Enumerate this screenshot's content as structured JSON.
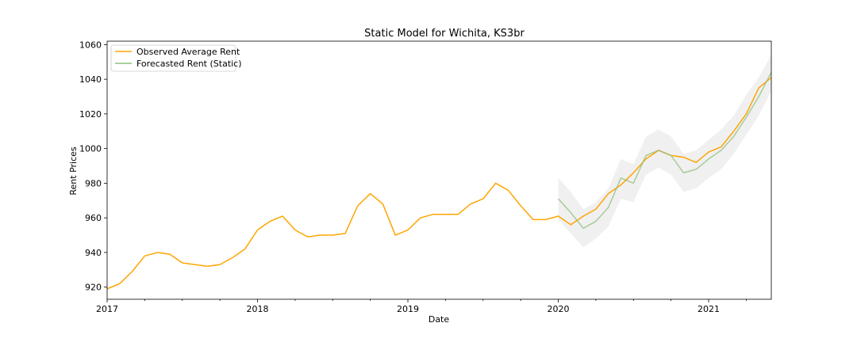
{
  "chart_data": {
    "type": "line",
    "title": "Static Model for Wichita, KS3br",
    "xlabel": "Date",
    "ylabel": "Rent Prices",
    "xlim": [
      "2017-01",
      "2021-06"
    ],
    "ylim": [
      913,
      1062
    ],
    "x_ticks": [
      "2017",
      "2018",
      "2019",
      "2020",
      "2021"
    ],
    "y_ticks": [
      920,
      940,
      960,
      980,
      1000,
      1020,
      1040,
      1060
    ],
    "grid": false,
    "legend_position": "top-left",
    "series": [
      {
        "name": "Observed Average Rent",
        "color": "#ffa500",
        "x": [
          "2017-01",
          "2017-02",
          "2017-03",
          "2017-04",
          "2017-05",
          "2017-06",
          "2017-07",
          "2017-08",
          "2017-09",
          "2017-10",
          "2017-11",
          "2017-12",
          "2018-01",
          "2018-02",
          "2018-03",
          "2018-04",
          "2018-05",
          "2018-06",
          "2018-07",
          "2018-08",
          "2018-09",
          "2018-10",
          "2018-11",
          "2018-12",
          "2019-01",
          "2019-02",
          "2019-03",
          "2019-04",
          "2019-05",
          "2019-06",
          "2019-07",
          "2019-08",
          "2019-09",
          "2019-10",
          "2019-11",
          "2019-12",
          "2020-01",
          "2020-02",
          "2020-03",
          "2020-04",
          "2020-05",
          "2020-06",
          "2020-07",
          "2020-08",
          "2020-09",
          "2020-10",
          "2020-11",
          "2020-12",
          "2021-01",
          "2021-02",
          "2021-03",
          "2021-04",
          "2021-05",
          "2021-06"
        ],
        "values": [
          919,
          922,
          929,
          938,
          940,
          939,
          934,
          933,
          932,
          933,
          937,
          942,
          953,
          958,
          961,
          953,
          949,
          950,
          950,
          951,
          967,
          974,
          968,
          950,
          953,
          960,
          962,
          962,
          962,
          968,
          971,
          980,
          976,
          967,
          959,
          959,
          961,
          956,
          961,
          965,
          974,
          979,
          986,
          994,
          999,
          996,
          995,
          992,
          998,
          1001,
          1010,
          1020,
          1035,
          1041
        ]
      },
      {
        "name": "Forecasted Rent (Static)",
        "color": "#8fbf7f",
        "x": [
          "2020-01",
          "2020-02",
          "2020-03",
          "2020-04",
          "2020-05",
          "2020-06",
          "2020-07",
          "2020-08",
          "2020-09",
          "2020-10",
          "2020-11",
          "2020-12",
          "2021-01",
          "2021-02",
          "2021-03",
          "2021-04",
          "2021-05",
          "2021-06"
        ],
        "values": [
          971,
          963,
          954,
          958,
          966,
          983,
          980,
          996,
          999,
          996,
          986,
          988,
          994,
          999,
          1007,
          1018,
          1030,
          1044
        ],
        "lower": [
          959,
          951,
          943,
          948,
          955,
          971,
          969,
          985,
          989,
          985,
          975,
          977,
          983,
          988,
          997,
          1008,
          1019,
          1033
        ],
        "upper": [
          983,
          975,
          965,
          969,
          977,
          994,
          991,
          1007,
          1011,
          1007,
          997,
          999,
          1005,
          1011,
          1019,
          1031,
          1041,
          1054
        ]
      }
    ]
  }
}
